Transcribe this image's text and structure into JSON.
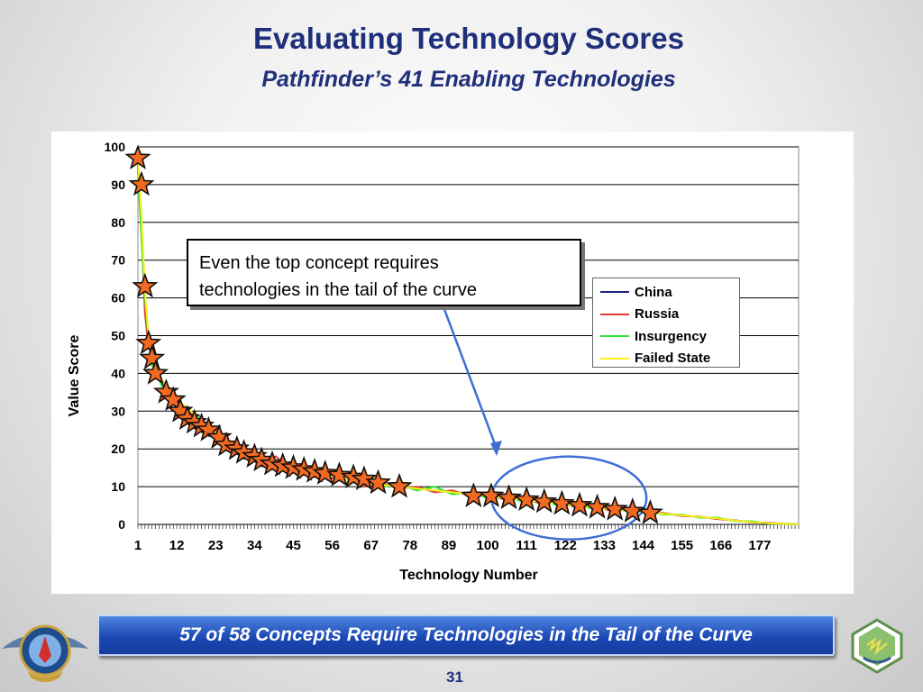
{
  "slide": {
    "title": "Evaluating Technology Scores",
    "subtitle": "Pathfinder’s 41 Enabling Technologies",
    "callout_line1": "Even the top concept requires",
    "callout_line2": "technologies in the tail of the curve",
    "banner": "57 of 58 Concepts Require Technologies in the Tail of the Curve",
    "page_number": "31"
  },
  "chart_data": {
    "type": "line",
    "xlabel": "Technology Number",
    "ylabel": "Value Score",
    "xlim": [
      1,
      188
    ],
    "ylim": [
      0,
      100
    ],
    "yticks": [
      0,
      10,
      20,
      30,
      40,
      50,
      60,
      70,
      80,
      90,
      100
    ],
    "xtick_labels": [
      1,
      12,
      23,
      34,
      45,
      56,
      67,
      78,
      89,
      100,
      111,
      122,
      133,
      144,
      155,
      166,
      177
    ],
    "grid": "horizontal",
    "legend_position": "right",
    "series": [
      {
        "name": "China",
        "color": "#1a237e",
        "x": [
          1,
          2,
          3,
          4,
          5,
          6,
          8,
          10,
          12,
          15,
          18,
          22,
          26,
          30,
          35,
          40,
          45,
          50,
          55,
          60,
          65,
          70,
          75,
          80,
          85,
          90,
          95,
          100,
          105,
          110,
          115,
          120,
          125,
          130,
          135,
          140,
          145,
          150,
          155,
          160,
          165,
          170,
          175,
          180,
          185,
          188
        ],
        "y": [
          96,
          80,
          58,
          48,
          43,
          40,
          37,
          35,
          33,
          30,
          28,
          25,
          22,
          20,
          18,
          17,
          15,
          14,
          13,
          12,
          11,
          10.5,
          10,
          9.5,
          9,
          8.5,
          8,
          7.5,
          7,
          6.5,
          6,
          5.5,
          5,
          4.5,
          4,
          3.6,
          3.2,
          2.8,
          2.4,
          2,
          1.6,
          1,
          0.6,
          0.3,
          0.1,
          0
        ]
      },
      {
        "name": "Russia",
        "color": "#e53935",
        "x": [
          1,
          2,
          3,
          4,
          5,
          6,
          8,
          10,
          12,
          15,
          18,
          22,
          26,
          30,
          35,
          40,
          45,
          50,
          55,
          60,
          65,
          70,
          75,
          80,
          85,
          90,
          95,
          100,
          105,
          110,
          115,
          120,
          125,
          130,
          135,
          140,
          145,
          150,
          155,
          160,
          165,
          170,
          175,
          180,
          185,
          188
        ],
        "y": [
          95,
          78,
          56,
          47,
          44,
          39,
          38,
          36,
          32,
          31,
          27,
          26,
          21,
          21,
          17,
          18,
          14,
          15,
          12,
          13,
          10,
          11,
          9.5,
          10,
          8.5,
          9,
          7.5,
          8,
          6.5,
          7,
          5.5,
          6,
          4.5,
          5,
          3.5,
          4,
          3,
          3,
          2.2,
          2.1,
          1.4,
          1.1,
          0.5,
          0.4,
          0.1,
          0
        ]
      },
      {
        "name": "Insurgency",
        "color": "#2ee32e",
        "x": [
          1,
          2,
          3,
          4,
          5,
          6,
          8,
          10,
          12,
          15,
          18,
          22,
          26,
          30,
          35,
          40,
          45,
          50,
          55,
          60,
          65,
          70,
          75,
          80,
          85,
          90,
          95,
          100,
          105,
          110,
          115,
          120,
          125,
          130,
          135,
          140,
          145,
          150,
          155,
          160,
          165,
          170,
          175,
          180,
          185,
          188
        ],
        "y": [
          94,
          76,
          60,
          49,
          42,
          41,
          36,
          34,
          34,
          29,
          29,
          24,
          23,
          19,
          19,
          16,
          16,
          13,
          14,
          11,
          12,
          10,
          10.5,
          9,
          10,
          8,
          8.5,
          7,
          7.5,
          6,
          6.5,
          5,
          5.5,
          4,
          4.5,
          3.4,
          3.4,
          2.6,
          2.6,
          1.8,
          1.8,
          0.9,
          0.8,
          0.2,
          0.2,
          0
        ]
      },
      {
        "name": "Failed State",
        "color": "#f2f21a",
        "x": [
          1,
          2,
          3,
          4,
          5,
          6,
          8,
          10,
          12,
          15,
          18,
          22,
          26,
          30,
          35,
          40,
          45,
          50,
          55,
          60,
          65,
          70,
          75,
          80,
          85,
          90,
          95,
          100,
          105,
          110,
          115,
          120,
          125,
          130,
          135,
          140,
          145,
          150,
          155,
          160,
          165,
          170,
          175,
          180,
          185,
          188
        ],
        "y": [
          97,
          82,
          62,
          50,
          45,
          42,
          38,
          35,
          33,
          31,
          28,
          25,
          22,
          20,
          18,
          17,
          15,
          14,
          13,
          12,
          11,
          10.5,
          10,
          9.5,
          9,
          8.5,
          8,
          7.5,
          7,
          6.5,
          6,
          5.5,
          5,
          4.5,
          4,
          3.6,
          3.2,
          2.8,
          2.4,
          2,
          1.6,
          1,
          0.6,
          0.3,
          0.1,
          0
        ]
      }
    ],
    "highlighted_technologies": {
      "marker": "star",
      "x": [
        1,
        2,
        3,
        4,
        5,
        6,
        9,
        11,
        13,
        15,
        17,
        19,
        21,
        24,
        26,
        29,
        31,
        34,
        36,
        39,
        42,
        45,
        48,
        51,
        54,
        58,
        62,
        65,
        69,
        75,
        96,
        101,
        106,
        111,
        116,
        121,
        126,
        131,
        136,
        141,
        146
      ],
      "y": [
        97,
        90,
        63,
        48,
        44,
        40,
        35,
        33,
        30,
        28,
        27,
        26,
        25,
        23,
        21,
        20,
        19,
        18,
        17,
        16,
        15.5,
        15,
        14.5,
        14,
        13.5,
        13,
        12.5,
        12,
        11,
        10,
        7.5,
        7.5,
        7,
        6.5,
        6,
        5.5,
        5,
        4.5,
        4,
        3.5,
        3
      ]
    }
  },
  "legend": {
    "items": [
      {
        "label": "China",
        "color": "#1a237e"
      },
      {
        "label": "Russia",
        "color": "#e53935"
      },
      {
        "label": "Insurgency",
        "color": "#2ee32e"
      },
      {
        "label": "Failed State",
        "color": "#f2f21a"
      }
    ]
  }
}
